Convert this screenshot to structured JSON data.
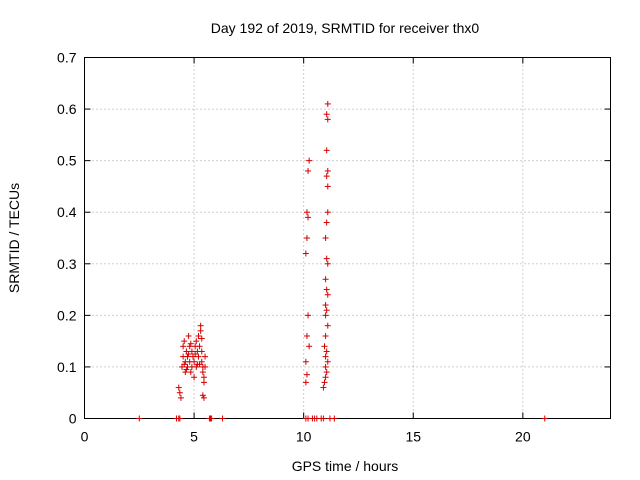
{
  "chart_data": {
    "type": "scatter",
    "title": "Day 192 of 2019, SRMTID for receiver thx0",
    "xlabel": "GPS time / hours",
    "ylabel": "SRMTID / TECUs",
    "xlim": [
      0,
      24
    ],
    "ylim": [
      0,
      0.7
    ],
    "xticks": [
      0,
      5,
      10,
      15,
      20
    ],
    "xtick_labels": [
      "0",
      "5",
      "10",
      "15",
      "20"
    ],
    "yticks": [
      0,
      0.1,
      0.2,
      0.3,
      0.4,
      0.5,
      0.6,
      0.7
    ],
    "ytick_labels": [
      "0",
      "0.1",
      "0.2",
      "0.3",
      "0.4",
      "0.5",
      "0.6",
      "0.7"
    ],
    "grid": true,
    "marker": "+",
    "color": "#d40000",
    "series": [
      {
        "name": "thx0",
        "points": [
          [
            2.5,
            0.0
          ],
          [
            4.2,
            0.0
          ],
          [
            4.3,
            0.0
          ],
          [
            4.35,
            0.0
          ],
          [
            5.7,
            0.0
          ],
          [
            5.75,
            0.0
          ],
          [
            5.8,
            0.0
          ],
          [
            6.3,
            0.0
          ],
          [
            10.1,
            0.0
          ],
          [
            10.2,
            0.0
          ],
          [
            10.4,
            0.0
          ],
          [
            10.5,
            0.0
          ],
          [
            10.6,
            0.0
          ],
          [
            10.8,
            0.0
          ],
          [
            10.9,
            0.0
          ],
          [
            11.2,
            0.0
          ],
          [
            11.4,
            0.0
          ],
          [
            21.0,
            0.0
          ],
          [
            4.3,
            0.06
          ],
          [
            4.35,
            0.05
          ],
          [
            4.4,
            0.04
          ],
          [
            4.45,
            0.1
          ],
          [
            4.5,
            0.12
          ],
          [
            4.5,
            0.14
          ],
          [
            4.55,
            0.15
          ],
          [
            4.6,
            0.09
          ],
          [
            4.6,
            0.11
          ],
          [
            4.65,
            0.13
          ],
          [
            4.7,
            0.12
          ],
          [
            4.7,
            0.1
          ],
          [
            4.75,
            0.16
          ],
          [
            4.8,
            0.14
          ],
          [
            4.8,
            0.11
          ],
          [
            4.85,
            0.09
          ],
          [
            4.9,
            0.1
          ],
          [
            4.9,
            0.13
          ],
          [
            4.95,
            0.12
          ],
          [
            5.0,
            0.08
          ],
          [
            5.0,
            0.11
          ],
          [
            5.05,
            0.14
          ],
          [
            5.1,
            0.1
          ],
          [
            5.1,
            0.15
          ],
          [
            5.15,
            0.13
          ],
          [
            5.2,
            0.12
          ],
          [
            5.2,
            0.16
          ],
          [
            5.25,
            0.14
          ],
          [
            5.3,
            0.18
          ],
          [
            5.3,
            0.17
          ],
          [
            5.35,
            0.13
          ],
          [
            5.35,
            0.11
          ],
          [
            5.4,
            0.1
          ],
          [
            5.4,
            0.09
          ],
          [
            5.45,
            0.08
          ],
          [
            5.45,
            0.07
          ],
          [
            5.5,
            0.1
          ],
          [
            5.5,
            0.12
          ],
          [
            5.4,
            0.045
          ],
          [
            5.45,
            0.04
          ],
          [
            4.55,
            0.105
          ],
          [
            4.65,
            0.095
          ],
          [
            4.75,
            0.125
          ],
          [
            4.85,
            0.145
          ],
          [
            5.05,
            0.125
          ],
          [
            5.25,
            0.105
          ],
          [
            5.35,
            0.155
          ],
          [
            5.15,
            0.105
          ],
          [
            10.1,
            0.07
          ],
          [
            10.1,
            0.11
          ],
          [
            10.15,
            0.16
          ],
          [
            10.2,
            0.2
          ],
          [
            10.1,
            0.32
          ],
          [
            10.15,
            0.35
          ],
          [
            10.2,
            0.39
          ],
          [
            10.15,
            0.4
          ],
          [
            10.2,
            0.48
          ],
          [
            10.25,
            0.5
          ],
          [
            10.15,
            0.085
          ],
          [
            10.25,
            0.14
          ],
          [
            10.9,
            0.06
          ],
          [
            10.95,
            0.07
          ],
          [
            11.0,
            0.08
          ],
          [
            11.05,
            0.09
          ],
          [
            11.0,
            0.1
          ],
          [
            11.1,
            0.11
          ],
          [
            11.0,
            0.12
          ],
          [
            11.05,
            0.13
          ],
          [
            10.95,
            0.14
          ],
          [
            11.0,
            0.16
          ],
          [
            11.1,
            0.18
          ],
          [
            11.0,
            0.2
          ],
          [
            11.05,
            0.21
          ],
          [
            11.0,
            0.22
          ],
          [
            11.1,
            0.24
          ],
          [
            11.05,
            0.25
          ],
          [
            11.0,
            0.27
          ],
          [
            11.1,
            0.3
          ],
          [
            11.05,
            0.31
          ],
          [
            11.0,
            0.35
          ],
          [
            11.05,
            0.38
          ],
          [
            11.1,
            0.4
          ],
          [
            11.1,
            0.45
          ],
          [
            11.05,
            0.47
          ],
          [
            11.1,
            0.48
          ],
          [
            11.05,
            0.52
          ],
          [
            11.1,
            0.58
          ],
          [
            11.05,
            0.59
          ],
          [
            11.1,
            0.61
          ]
        ]
      }
    ]
  }
}
